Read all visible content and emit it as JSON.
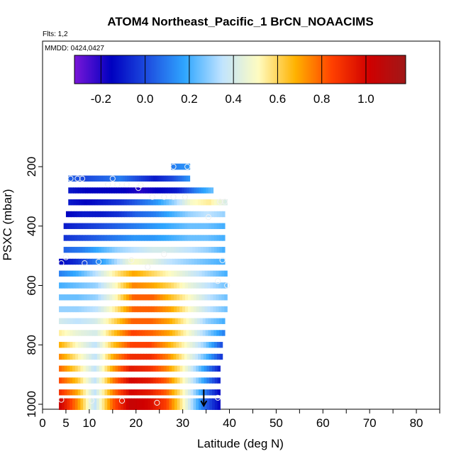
{
  "chart_data": {
    "type": "heatmap",
    "title": "ATOM4 Northeast_Pacific_1 BrCN_NOAACIMS",
    "flights_label": "Flts: 1,2",
    "dates_label": "MMDD: 0424,0427",
    "xlabel": "Latitude (deg N)",
    "ylabel": "PSXC (mbar)",
    "xlim": [
      0,
      85
    ],
    "ylim": [
      1000,
      0
    ],
    "x_ticks": [
      0,
      5,
      10,
      20,
      30,
      40,
      50,
      60,
      70,
      80
    ],
    "y_ticks": [
      200,
      400,
      600,
      800,
      1000
    ],
    "colorbar": {
      "range": [
        -0.32,
        1.18
      ],
      "ticks": [
        -0.2,
        0.0,
        0.2,
        0.4,
        0.6,
        0.8,
        1.0
      ],
      "tick_labels": [
        "-0.2",
        "0.0",
        "0.2",
        "0.4",
        "0.6",
        "0.8",
        "1.0"
      ],
      "colors": [
        "#7a17d8",
        "#0000c0",
        "#1e4fe0",
        "#2fa6ff",
        "#bfe3ff",
        "#fffcc0",
        "#ffb200",
        "#ff4000",
        "#d00000",
        "#a01818"
      ]
    },
    "rows": [
      {
        "p": 200,
        "lat": [
          27.5,
          31.5
        ],
        "v": [
          0.1,
          0.15
        ]
      },
      {
        "p": 240,
        "lat": [
          5.5,
          31.5
        ],
        "v": [
          0.05,
          0.0,
          0.05,
          0.1,
          0.0,
          -0.1,
          0.0,
          0.15
        ]
      },
      {
        "p": 280,
        "lat": [
          5.5,
          36.5
        ],
        "v": [
          -0.1,
          -0.15,
          -0.15,
          -0.15,
          -0.2,
          -0.15,
          -0.1,
          0.1,
          0.25
        ]
      },
      {
        "p": 320,
        "lat": [
          5.5,
          39.5
        ],
        "v": [
          -0.1,
          -0.15,
          -0.1,
          -0.05,
          0.05,
          0.15,
          0.3,
          0.5,
          0.55,
          0.4
        ]
      },
      {
        "p": 360,
        "lat": [
          5.0,
          39.0
        ],
        "v": [
          -0.15,
          -0.1,
          -0.1,
          -0.05,
          0.05,
          0.1,
          0.2,
          0.3,
          0.35,
          0.3
        ]
      },
      {
        "p": 400,
        "lat": [
          4.5,
          39.0
        ],
        "v": [
          -0.1,
          -0.05,
          0.0,
          0.05,
          0.1,
          0.15,
          0.2,
          0.25,
          0.25,
          0.2
        ]
      },
      {
        "p": 440,
        "lat": [
          4.5,
          39.0
        ],
        "v": [
          -0.05,
          0.0,
          0.05,
          0.1,
          0.15,
          0.15,
          0.2,
          0.25,
          0.25,
          0.2
        ]
      },
      {
        "p": 480,
        "lat": [
          4.5,
          39.0
        ],
        "v": [
          0.05,
          0.1,
          0.2,
          0.3,
          0.35,
          0.4,
          0.4,
          0.35,
          0.3,
          0.2
        ]
      },
      {
        "p": 520,
        "lat": [
          3.5,
          39.0
        ],
        "v": [
          -0.15,
          -0.05,
          0.1,
          0.3,
          0.5,
          0.45,
          0.35,
          0.3,
          0.25,
          0.2
        ]
      },
      {
        "p": 560,
        "lat": [
          3.5,
          39.5
        ],
        "v": [
          0.1,
          0.2,
          0.35,
          0.55,
          0.7,
          0.6,
          0.5,
          0.4,
          0.3,
          0.2
        ]
      },
      {
        "p": 600,
        "lat": [
          3.5,
          39.5
        ],
        "v": [
          0.2,
          0.25,
          0.3,
          0.5,
          0.75,
          0.7,
          0.6,
          0.45,
          0.35,
          0.25
        ]
      },
      {
        "p": 640,
        "lat": [
          3.5,
          39.5
        ],
        "v": [
          0.25,
          0.25,
          0.3,
          0.5,
          0.8,
          0.8,
          0.65,
          0.5,
          0.35,
          0.25
        ]
      },
      {
        "p": 680,
        "lat": [
          3.5,
          39.5
        ],
        "v": [
          0.3,
          0.3,
          0.35,
          0.55,
          0.8,
          0.8,
          0.7,
          0.5,
          0.35,
          0.25
        ]
      },
      {
        "p": 720,
        "lat": [
          3.5,
          39.0
        ],
        "v": [
          0.4,
          0.35,
          0.4,
          0.6,
          0.8,
          0.8,
          0.7,
          0.5,
          0.3,
          0.2
        ]
      },
      {
        "p": 760,
        "lat": [
          3.5,
          39.0
        ],
        "v": [
          0.55,
          0.45,
          0.4,
          0.65,
          0.85,
          0.8,
          0.7,
          0.5,
          0.3,
          0.1
        ]
      },
      {
        "p": 800,
        "lat": [
          3.5,
          38.5
        ],
        "v": [
          0.7,
          0.5,
          0.35,
          0.65,
          0.85,
          0.85,
          0.7,
          0.5,
          0.3,
          0.0
        ]
      },
      {
        "p": 840,
        "lat": [
          3.5,
          38.5
        ],
        "v": [
          0.75,
          0.55,
          0.35,
          0.7,
          0.9,
          0.9,
          0.75,
          0.5,
          0.25,
          -0.05
        ]
      },
      {
        "p": 880,
        "lat": [
          3.5,
          38.0
        ],
        "v": [
          0.8,
          0.6,
          0.35,
          0.7,
          0.95,
          0.9,
          0.75,
          0.5,
          0.2,
          -0.1
        ]
      },
      {
        "p": 920,
        "lat": [
          3.5,
          38.0
        ],
        "v": [
          0.85,
          0.65,
          0.35,
          0.75,
          1.0,
          0.95,
          0.8,
          0.5,
          0.2,
          -0.1
        ]
      },
      {
        "p": 960,
        "lat": [
          3.5,
          38.0
        ],
        "v": [
          0.9,
          0.7,
          0.35,
          0.75,
          1.0,
          0.95,
          0.8,
          0.5,
          0.15,
          -0.15
        ]
      },
      {
        "p": 990,
        "lat": [
          3.5,
          38.0
        ],
        "v": [
          1.05,
          0.75,
          0.35,
          0.8,
          1.05,
          1.0,
          0.85,
          0.5,
          0.1,
          -0.15
        ]
      }
    ],
    "points": [
      {
        "lat": 28,
        "p": 200
      },
      {
        "lat": 31,
        "p": 200
      },
      {
        "lat": 6,
        "p": 240
      },
      {
        "lat": 7.5,
        "p": 240
      },
      {
        "lat": 8.5,
        "p": 240
      },
      {
        "lat": 15,
        "p": 240
      },
      {
        "lat": 14,
        "p": 260
      },
      {
        "lat": 16,
        "p": 260
      },
      {
        "lat": 18,
        "p": 260
      },
      {
        "lat": 21,
        "p": 262
      },
      {
        "lat": 20.5,
        "p": 272
      },
      {
        "lat": 23.5,
        "p": 302
      },
      {
        "lat": 26,
        "p": 302
      },
      {
        "lat": 28,
        "p": 302
      },
      {
        "lat": 30.5,
        "p": 302
      },
      {
        "lat": 38,
        "p": 318
      },
      {
        "lat": 39,
        "p": 318
      },
      {
        "lat": 35.5,
        "p": 370
      },
      {
        "lat": 26,
        "p": 495
      },
      {
        "lat": 5,
        "p": 505
      },
      {
        "lat": 38.5,
        "p": 515
      },
      {
        "lat": 19,
        "p": 515
      },
      {
        "lat": 12,
        "p": 520
      },
      {
        "lat": 4,
        "p": 525
      },
      {
        "lat": 9,
        "p": 525
      },
      {
        "lat": 22.5,
        "p": 538
      },
      {
        "lat": 37.5,
        "p": 585
      },
      {
        "lat": 39.5,
        "p": 600
      },
      {
        "lat": 37.5,
        "p": 978
      },
      {
        "lat": 4,
        "p": 985
      },
      {
        "lat": 10.5,
        "p": 988
      },
      {
        "lat": 17,
        "p": 988
      },
      {
        "lat": 24.5,
        "p": 995
      }
    ],
    "arrow": {
      "lat": 34.5,
      "p_from": 950,
      "p_to": 1005
    }
  }
}
